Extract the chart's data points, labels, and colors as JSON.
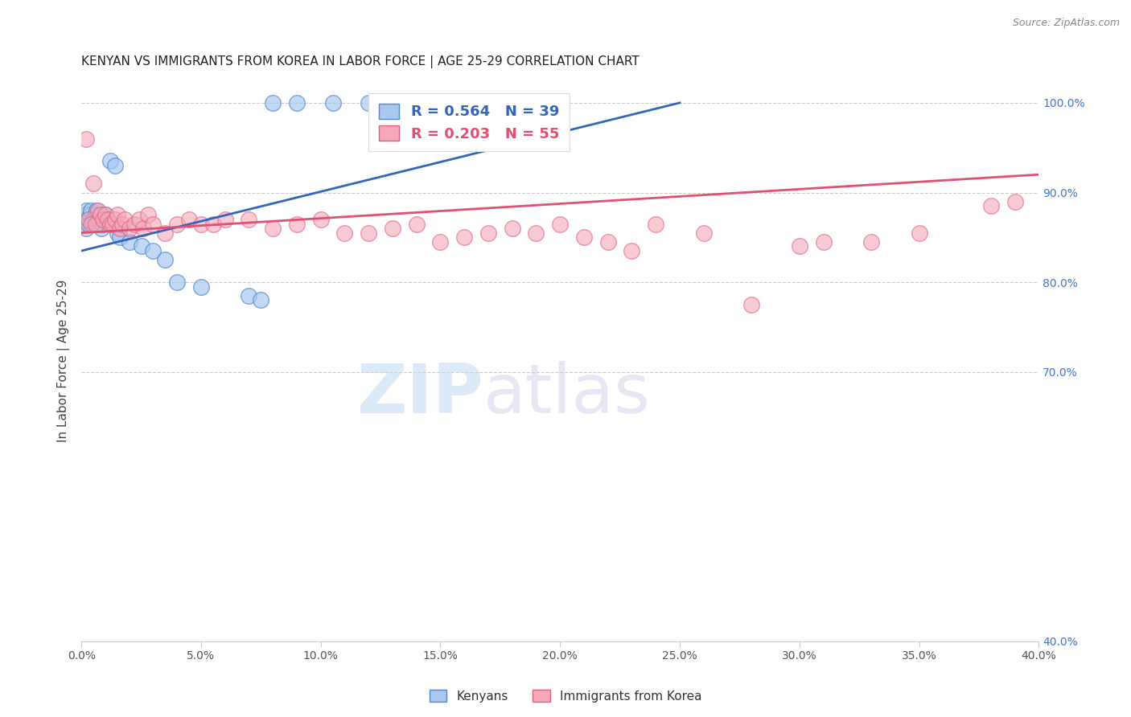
{
  "title": "KENYAN VS IMMIGRANTS FROM KOREA IN LABOR FORCE | AGE 25-29 CORRELATION CHART",
  "source": "Source: ZipAtlas.com",
  "ylabel": "In Labor Force | Age 25-29",
  "xlabel_vals": [
    0.0,
    5.0,
    10.0,
    15.0,
    20.0,
    25.0,
    30.0,
    35.0,
    40.0
  ],
  "ylabel_right_vals": [
    100.0,
    90.0,
    80.0,
    70.0,
    40.0
  ],
  "legend_r_blue": "R = 0.564",
  "legend_n_blue": "N = 39",
  "legend_r_pink": "R = 0.203",
  "legend_n_pink": "N = 55",
  "legend_label_blue": "Kenyans",
  "legend_label_pink": "Immigrants from Korea",
  "blue_face_color": "#A8C8F0",
  "pink_face_color": "#F4A8B8",
  "blue_edge_color": "#5588CC",
  "pink_edge_color": "#E06080",
  "blue_line_color": "#3366BB",
  "pink_line_color": "#E05070",
  "blue_alpha": 0.7,
  "pink_alpha": 0.6,
  "xmin": 0.0,
  "xmax": 40.0,
  "ymin": 40.0,
  "ymax": 102.5,
  "watermark_zip": "ZIP",
  "watermark_atlas": "atlas",
  "blue_x": [
    0.1,
    0.15,
    0.2,
    0.2,
    0.25,
    0.3,
    0.35,
    0.4,
    0.45,
    0.5,
    0.55,
    0.6,
    0.65,
    0.7,
    0.75,
    0.8,
    0.85,
    0.9,
    1.0,
    1.1,
    1.2,
    1.4,
    1.5,
    1.6,
    2.0,
    2.5,
    3.0,
    3.5,
    4.0,
    5.0,
    7.0,
    7.5,
    8.0,
    9.0,
    10.5,
    12.0,
    14.0,
    16.0,
    20.0
  ],
  "blue_y": [
    86.5,
    87.5,
    88.0,
    86.0,
    87.0,
    86.5,
    87.5,
    88.0,
    86.5,
    87.0,
    86.5,
    87.5,
    88.0,
    86.5,
    87.0,
    87.5,
    86.0,
    86.5,
    87.5,
    87.0,
    93.5,
    93.0,
    85.5,
    85.0,
    84.5,
    84.0,
    83.5,
    82.5,
    80.0,
    79.5,
    78.5,
    78.0,
    100.0,
    100.0,
    100.0,
    100.0,
    100.0,
    100.0,
    100.0
  ],
  "pink_x": [
    0.2,
    0.3,
    0.4,
    0.5,
    0.6,
    0.7,
    0.8,
    0.9,
    1.0,
    1.1,
    1.2,
    1.3,
    1.4,
    1.5,
    1.6,
    1.7,
    1.8,
    2.0,
    2.2,
    2.4,
    2.6,
    2.8,
    3.0,
    3.5,
    4.0,
    4.5,
    5.0,
    5.5,
    6.0,
    7.0,
    8.0,
    9.0,
    10.0,
    11.0,
    12.0,
    13.0,
    14.0,
    15.0,
    16.0,
    17.0,
    18.0,
    19.0,
    20.0,
    21.0,
    22.0,
    23.0,
    24.0,
    26.0,
    28.0,
    30.0,
    31.0,
    33.0,
    35.0,
    38.0,
    39.0
  ],
  "pink_y": [
    96.0,
    87.0,
    86.5,
    91.0,
    86.5,
    88.0,
    87.5,
    87.0,
    87.5,
    87.0,
    86.5,
    86.5,
    87.0,
    87.5,
    86.0,
    86.5,
    87.0,
    86.0,
    86.5,
    87.0,
    86.0,
    87.5,
    86.5,
    85.5,
    86.5,
    87.0,
    86.5,
    86.5,
    87.0,
    87.0,
    86.0,
    86.5,
    87.0,
    85.5,
    85.5,
    86.0,
    86.5,
    84.5,
    85.0,
    85.5,
    86.0,
    85.5,
    86.5,
    85.0,
    84.5,
    83.5,
    86.5,
    85.5,
    77.5,
    84.0,
    84.5,
    84.5,
    85.5,
    88.5,
    89.0
  ]
}
